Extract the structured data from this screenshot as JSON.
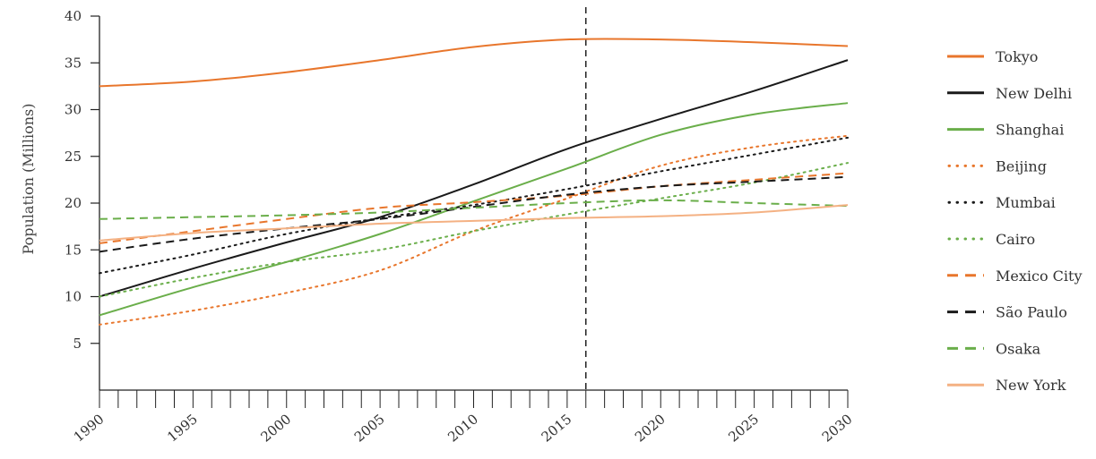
{
  "chart_data": {
    "type": "line",
    "ylabel": "Population (Millions)",
    "xlabel": "",
    "xlim": [
      1990,
      2030
    ],
    "ylim": [
      0,
      40
    ],
    "x_ticks": [
      1990,
      1995,
      2000,
      2005,
      2010,
      2015,
      2020,
      2025,
      2030
    ],
    "x_tick_labels": [
      "1990",
      "1995",
      "2000",
      "2005",
      "2010",
      "2015",
      "2020",
      "2025",
      "2030"
    ],
    "y_ticks": [
      5,
      10,
      15,
      20,
      25,
      30,
      35,
      40
    ],
    "y_tick_labels": [
      "5",
      "10",
      "15",
      "20",
      "25",
      "30",
      "35",
      "40"
    ],
    "reference_line_x": 2016,
    "legend_position": "right",
    "grid": false,
    "x": [
      1990,
      1995,
      2000,
      2005,
      2010,
      2015,
      2020,
      2025,
      2030
    ],
    "series": [
      {
        "name": "Tokyo",
        "color": "#E8762C",
        "style": "solid",
        "values": [
          32.5,
          33.0,
          34.0,
          35.3,
          36.7,
          37.5,
          37.5,
          37.2,
          36.8
        ]
      },
      {
        "name": "New Delhi",
        "color": "#1a1a1a",
        "style": "solid",
        "values": [
          10.0,
          13.0,
          15.8,
          18.5,
          22.0,
          25.8,
          29.0,
          32.0,
          35.3
        ]
      },
      {
        "name": "Shanghai",
        "color": "#6AAE4A",
        "style": "solid",
        "values": [
          8.0,
          11.0,
          13.7,
          16.7,
          20.2,
          23.7,
          27.3,
          29.5,
          30.7
        ]
      },
      {
        "name": "Beijing",
        "color": "#E8762C",
        "style": "dotted",
        "values": [
          7.0,
          8.5,
          10.4,
          12.8,
          17.0,
          20.5,
          24.0,
          26.0,
          27.2
        ]
      },
      {
        "name": "Mumbai",
        "color": "#1a1a1a",
        "style": "dotted",
        "values": [
          12.5,
          14.5,
          16.7,
          18.4,
          19.8,
          21.5,
          23.4,
          25.2,
          27.0
        ]
      },
      {
        "name": "Cairo",
        "color": "#6AAE4A",
        "style": "dotted",
        "values": [
          10.0,
          12.0,
          13.7,
          15.0,
          17.0,
          18.8,
          20.5,
          22.2,
          24.3
        ]
      },
      {
        "name": "Mexico City",
        "color": "#E8762C",
        "style": "dashed",
        "values": [
          15.7,
          17.0,
          18.3,
          19.5,
          20.1,
          20.8,
          21.8,
          22.5,
          23.2
        ]
      },
      {
        "name": "São Paulo",
        "color": "#1a1a1a",
        "style": "dashed",
        "values": [
          14.8,
          16.2,
          17.3,
          18.3,
          19.6,
          20.9,
          21.8,
          22.3,
          22.8
        ]
      },
      {
        "name": "Osaka",
        "color": "#6AAE4A",
        "style": "dashed",
        "values": [
          18.3,
          18.5,
          18.7,
          19.0,
          19.5,
          20.0,
          20.3,
          20.0,
          19.7
        ]
      },
      {
        "name": "New York",
        "color": "#F4B183",
        "style": "solid",
        "values": [
          16.0,
          16.8,
          17.3,
          17.8,
          18.1,
          18.4,
          18.6,
          19.0,
          19.8
        ]
      }
    ]
  }
}
